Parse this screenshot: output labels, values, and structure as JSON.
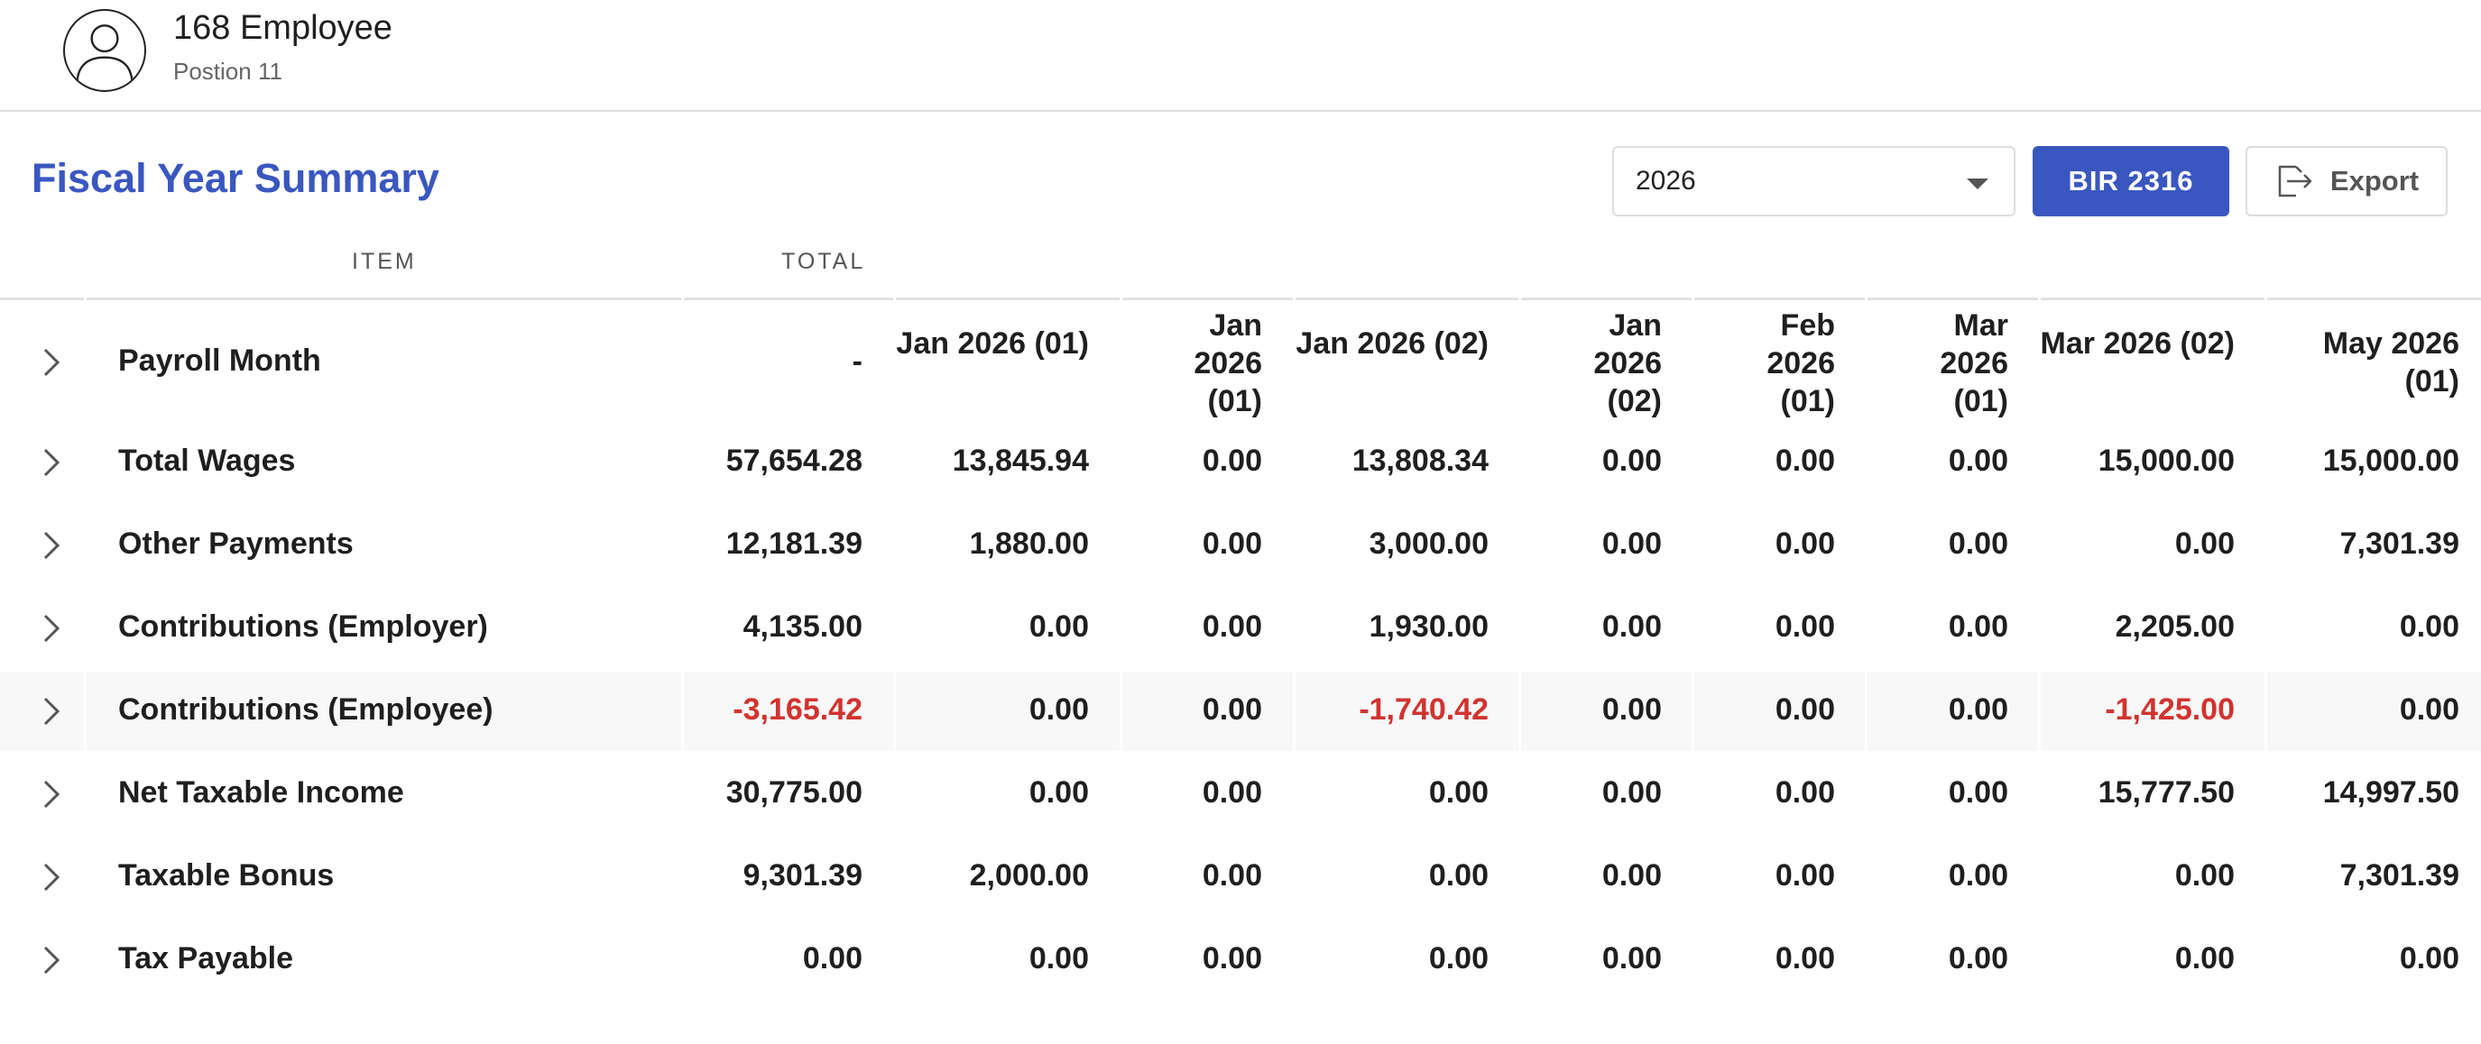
{
  "employee": {
    "name": "168 Employee",
    "position": "Postion 11",
    "avatar_icon": "user-avatar-icon"
  },
  "section": {
    "title": "Fiscal Year Summary",
    "year_value": "2026",
    "bir_label": "BIR 2316",
    "export_label": "Export",
    "export_icon": "export-icon",
    "accent": "#3a57c0",
    "negative_color": "#d1332f"
  },
  "table": {
    "headers": {
      "item": "ITEM",
      "total": "TOTAL"
    },
    "payroll_months": [
      "-",
      "Jan 2026 (01)",
      "Jan 2026 (01)",
      "Jan 2026 (02)",
      "Jan 2026 (02)",
      "Feb 2026 (01)",
      "Mar 2026 (01)",
      "Mar 2026 (02)",
      "May 2026 (01)"
    ],
    "payroll_label": "Payroll Month",
    "rows": [
      {
        "label": "Total Wages",
        "values": [
          "57,654.28",
          "13,845.94",
          "0.00",
          "13,808.34",
          "0.00",
          "0.00",
          "0.00",
          "15,000.00",
          "15,000.00"
        ]
      },
      {
        "label": "Other Payments",
        "values": [
          "12,181.39",
          "1,880.00",
          "0.00",
          "3,000.00",
          "0.00",
          "0.00",
          "0.00",
          "0.00",
          "7,301.39"
        ]
      },
      {
        "label": "Contributions (Employer)",
        "values": [
          "4,135.00",
          "0.00",
          "0.00",
          "1,930.00",
          "0.00",
          "0.00",
          "0.00",
          "2,205.00",
          "0.00"
        ]
      },
      {
        "label": "Contributions (Employee)",
        "values": [
          "-3,165.42",
          "0.00",
          "0.00",
          "-1,740.42",
          "0.00",
          "0.00",
          "0.00",
          "-1,425.00",
          "0.00"
        ]
      },
      {
        "label": "Net Taxable Income",
        "values": [
          "30,775.00",
          "0.00",
          "0.00",
          "0.00",
          "0.00",
          "0.00",
          "0.00",
          "15,777.50",
          "14,997.50"
        ]
      },
      {
        "label": "Taxable Bonus",
        "values": [
          "9,301.39",
          "2,000.00",
          "0.00",
          "0.00",
          "0.00",
          "0.00",
          "0.00",
          "0.00",
          "7,301.39"
        ]
      },
      {
        "label": "Tax Payable",
        "values": [
          "0.00",
          "0.00",
          "0.00",
          "0.00",
          "0.00",
          "0.00",
          "0.00",
          "0.00",
          "0.00"
        ]
      }
    ]
  }
}
